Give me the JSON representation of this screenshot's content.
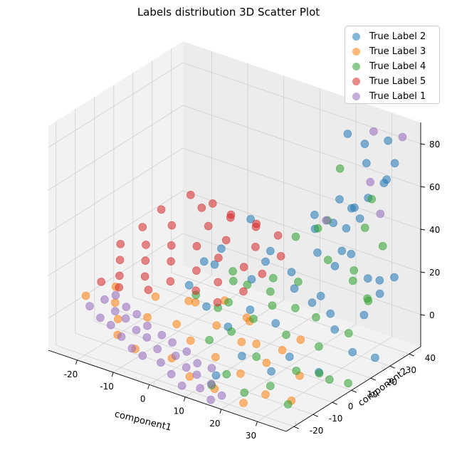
{
  "chart_data": {
    "type": "scatter",
    "title": "Labels distribution 3D Scatter Plot",
    "xlabel": "component1",
    "ylabel": "component2",
    "zlabel": "",
    "xlim": [
      -28,
      38
    ],
    "ylim": [
      -24,
      46
    ],
    "zlim": [
      -15,
      90
    ],
    "xticks": [
      -20,
      -10,
      0,
      10,
      20,
      30
    ],
    "yticks": [
      -20,
      -10,
      0,
      10,
      20,
      30,
      40
    ],
    "zticks": [
      0,
      20,
      40,
      60,
      80
    ],
    "grid": true,
    "legend_position": "top-right",
    "series": [
      {
        "name": "True Label 2",
        "color": "#1f77b4",
        "points": [
          [
            22,
            38,
            80
          ],
          [
            31,
            30,
            85
          ],
          [
            30,
            44,
            78
          ],
          [
            34,
            40,
            72
          ],
          [
            36,
            32,
            70
          ],
          [
            33,
            28,
            62
          ],
          [
            31,
            40,
            61
          ],
          [
            24,
            44,
            64
          ],
          [
            35,
            20,
            58
          ],
          [
            24,
            30,
            55
          ],
          [
            26,
            34,
            50
          ],
          [
            10,
            10,
            49
          ],
          [
            28,
            26,
            46
          ],
          [
            16,
            32,
            42
          ],
          [
            22,
            40,
            44
          ],
          [
            30,
            20,
            40
          ],
          [
            18,
            38,
            36
          ],
          [
            14,
            36,
            32
          ],
          [
            20,
            26,
            30
          ],
          [
            27,
            22,
            30
          ],
          [
            34,
            26,
            26
          ],
          [
            36,
            36,
            22
          ],
          [
            33,
            34,
            20
          ],
          [
            24,
            36,
            26
          ],
          [
            12,
            14,
            28
          ],
          [
            8,
            24,
            25
          ],
          [
            16,
            20,
            22
          ],
          [
            20,
            14,
            20
          ],
          [
            26,
            12,
            18
          ],
          [
            30,
            14,
            14
          ],
          [
            34,
            24,
            10
          ],
          [
            32,
            36,
            12
          ],
          [
            22,
            24,
            12
          ],
          [
            4,
            6,
            34
          ],
          [
            0,
            10,
            22
          ],
          [
            -4,
            12,
            20
          ],
          [
            6,
            18,
            14
          ],
          [
            12,
            6,
            10
          ],
          [
            18,
            8,
            6
          ],
          [
            28,
            20,
            2
          ],
          [
            34,
            18,
            -4
          ],
          [
            36,
            26,
            -10
          ],
          [
            24,
            4,
            -4
          ],
          [
            30,
            8,
            -10
          ],
          [
            14,
            -2,
            -6
          ],
          [
            8,
            2,
            2
          ],
          [
            -6,
            8,
            10
          ],
          [
            2,
            2,
            8
          ],
          [
            20,
            2,
            -12
          ],
          [
            10,
            -8,
            -14
          ]
        ]
      },
      {
        "name": "True Label 3",
        "color": "#ff7f0e",
        "points": [
          [
            -24,
            -12,
            6
          ],
          [
            -18,
            -8,
            4
          ],
          [
            -14,
            -14,
            2
          ],
          [
            -8,
            -10,
            4
          ],
          [
            -2,
            -6,
            2
          ],
          [
            4,
            -10,
            0
          ],
          [
            8,
            -4,
            6
          ],
          [
            12,
            -12,
            -2
          ],
          [
            16,
            -6,
            4
          ],
          [
            20,
            -14,
            -4
          ],
          [
            24,
            -8,
            0
          ],
          [
            28,
            -16,
            -8
          ],
          [
            -10,
            -2,
            8
          ],
          [
            0,
            0,
            10
          ],
          [
            6,
            4,
            12
          ],
          [
            14,
            2,
            8
          ],
          [
            18,
            -2,
            2
          ],
          [
            22,
            4,
            -2
          ],
          [
            30,
            -2,
            -6
          ],
          [
            26,
            6,
            4
          ],
          [
            -20,
            -4,
            8
          ],
          [
            -4,
            4,
            6
          ],
          [
            10,
            8,
            4
          ],
          [
            2,
            -16,
            -6
          ],
          [
            -12,
            -18,
            -2
          ],
          [
            16,
            -20,
            -10
          ],
          [
            32,
            -10,
            -12
          ],
          [
            8,
            -18,
            -10
          ],
          [
            -6,
            -20,
            -4
          ],
          [
            24,
            -20,
            -12
          ]
        ]
      },
      {
        "name": "True Label 4",
        "color": "#2ca02c",
        "points": [
          [
            22,
            34,
            66
          ],
          [
            34,
            28,
            62
          ],
          [
            26,
            20,
            52
          ],
          [
            30,
            32,
            44
          ],
          [
            36,
            30,
            40
          ],
          [
            18,
            30,
            38
          ],
          [
            14,
            26,
            34
          ],
          [
            24,
            24,
            30
          ],
          [
            32,
            22,
            26
          ],
          [
            28,
            30,
            24
          ],
          [
            36,
            22,
            20
          ],
          [
            20,
            16,
            22
          ],
          [
            12,
            18,
            18
          ],
          [
            8,
            12,
            16
          ],
          [
            16,
            10,
            12
          ],
          [
            26,
            14,
            10
          ],
          [
            34,
            16,
            6
          ],
          [
            30,
            8,
            2
          ],
          [
            22,
            6,
            4
          ],
          [
            14,
            4,
            8
          ],
          [
            6,
            6,
            10
          ],
          [
            4,
            12,
            20
          ],
          [
            2,
            16,
            12
          ],
          [
            10,
            0,
            2
          ],
          [
            18,
            -2,
            -4
          ],
          [
            28,
            0,
            -6
          ],
          [
            34,
            6,
            -10
          ],
          [
            24,
            -6,
            -12
          ],
          [
            14,
            -10,
            -10
          ],
          [
            6,
            -4,
            -2
          ],
          [
            20,
            -12,
            -14
          ],
          [
            30,
            -8,
            -16
          ],
          [
            12,
            -14,
            -14
          ],
          [
            36,
            12,
            -14
          ],
          [
            28,
            12,
            -14
          ],
          [
            16,
            22,
            4
          ],
          [
            8,
            24,
            6
          ],
          [
            2,
            8,
            4
          ],
          [
            -2,
            4,
            10
          ],
          [
            32,
            30,
            12
          ]
        ]
      },
      {
        "name": "True Label 5",
        "color": "#d62728",
        "points": [
          [
            -12,
            20,
            42
          ],
          [
            -18,
            16,
            34
          ],
          [
            -8,
            24,
            38
          ],
          [
            -2,
            22,
            36
          ],
          [
            4,
            24,
            34
          ],
          [
            -20,
            10,
            28
          ],
          [
            -14,
            14,
            30
          ],
          [
            -6,
            18,
            32
          ],
          [
            0,
            16,
            30
          ],
          [
            6,
            20,
            28
          ],
          [
            -24,
            6,
            20
          ],
          [
            -18,
            8,
            22
          ],
          [
            -12,
            10,
            24
          ],
          [
            -6,
            12,
            26
          ],
          [
            0,
            12,
            24
          ],
          [
            6,
            14,
            22
          ],
          [
            -22,
            2,
            16
          ],
          [
            -16,
            4,
            18
          ],
          [
            -10,
            6,
            20
          ],
          [
            -4,
            8,
            18
          ],
          [
            2,
            8,
            16
          ],
          [
            8,
            10,
            14
          ],
          [
            -20,
            -2,
            12
          ],
          [
            -14,
            0,
            14
          ],
          [
            -8,
            2,
            14
          ],
          [
            -2,
            4,
            12
          ],
          [
            4,
            4,
            10
          ],
          [
            -24,
            -4,
            8
          ],
          [
            -18,
            -6,
            10
          ],
          [
            -12,
            -2,
            10
          ],
          [
            10,
            16,
            20
          ],
          [
            12,
            22,
            26
          ],
          [
            8,
            28,
            30
          ],
          [
            -4,
            26,
            34
          ],
          [
            -10,
            22,
            36
          ],
          [
            2,
            28,
            32
          ]
        ]
      },
      {
        "name": "True Label 1",
        "color": "#9467bd",
        "points": [
          [
            26,
            44,
            80
          ],
          [
            34,
            44,
            82
          ],
          [
            24,
            46,
            54
          ],
          [
            16,
            38,
            36
          ],
          [
            30,
            40,
            46
          ],
          [
            -24,
            -10,
            0
          ],
          [
            -20,
            -12,
            -2
          ],
          [
            -16,
            -14,
            -2
          ],
          [
            -12,
            -16,
            -4
          ],
          [
            -8,
            -18,
            -6
          ],
          [
            -4,
            -20,
            -6
          ],
          [
            0,
            -18,
            -8
          ],
          [
            4,
            -20,
            -10
          ],
          [
            8,
            -22,
            -12
          ],
          [
            12,
            -20,
            -12
          ],
          [
            16,
            -22,
            -14
          ],
          [
            -22,
            -6,
            2
          ],
          [
            -18,
            -8,
            0
          ],
          [
            -14,
            -10,
            0
          ],
          [
            -10,
            -12,
            -2
          ],
          [
            -6,
            -14,
            -2
          ],
          [
            -2,
            -16,
            -4
          ],
          [
            2,
            -14,
            -6
          ],
          [
            6,
            -16,
            -8
          ],
          [
            10,
            -18,
            -8
          ],
          [
            14,
            -18,
            -10
          ],
          [
            18,
            -20,
            -12
          ],
          [
            -20,
            -4,
            4
          ],
          [
            -16,
            -6,
            2
          ],
          [
            -12,
            -8,
            2
          ],
          [
            -8,
            -10,
            0
          ],
          [
            -4,
            -10,
            -2
          ],
          [
            0,
            -12,
            -2
          ],
          [
            4,
            -12,
            -4
          ],
          [
            8,
            -14,
            -6
          ],
          [
            12,
            -14,
            -6
          ]
        ]
      }
    ]
  }
}
